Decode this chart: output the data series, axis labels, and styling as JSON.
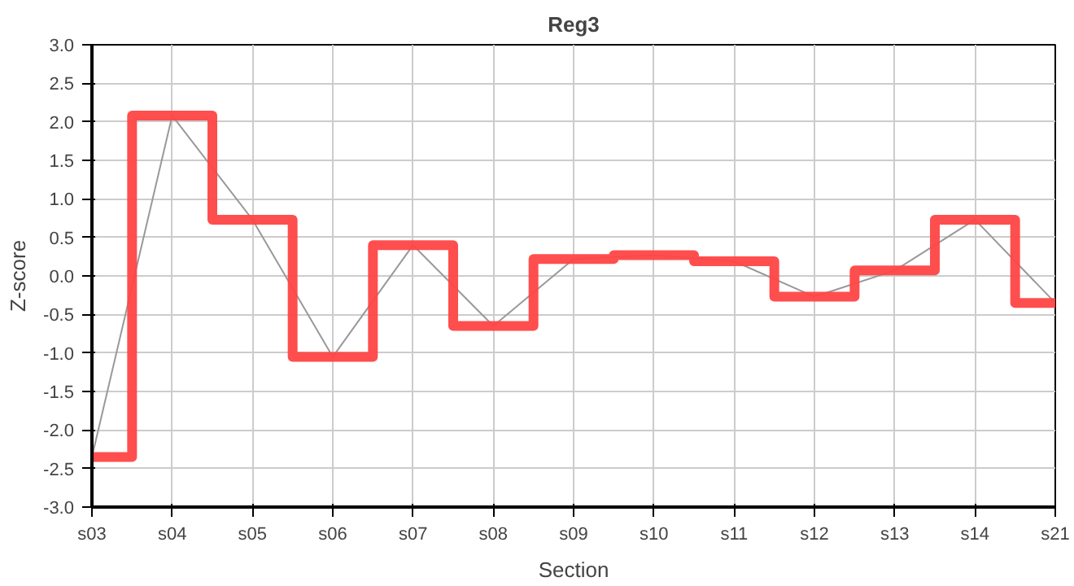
{
  "chart_data": {
    "type": "step",
    "title": "Reg3",
    "xlabel": "Section",
    "ylabel": "Z-score",
    "categories": [
      "s03",
      "s04",
      "s05",
      "s06",
      "s07",
      "s08",
      "s09",
      "s10",
      "s11",
      "s12",
      "s13",
      "s14",
      "s21"
    ],
    "series": [
      {
        "color": "#ff4444",
        "values": [
          -2.35,
          2.08,
          0.73,
          -1.05,
          0.4,
          -0.65,
          0.22,
          0.27,
          0.19,
          -0.27,
          0.07,
          0.73,
          -0.35
        ]
      },
      {
        "type": "line",
        "color": "#999999",
        "values": [
          -2.35,
          2.08,
          0.73,
          -1.05,
          0.4,
          -0.65,
          0.22,
          0.27,
          0.19,
          -0.27,
          0.07,
          0.73,
          -0.35
        ]
      }
    ],
    "ylim": [
      -3.0,
      3.0
    ],
    "yticks": [
      {
        "value": -3,
        "label": "-3.0"
      },
      {
        "value": -2.5,
        "label": "-2.5"
      },
      {
        "value": -2,
        "label": "-2.0"
      },
      {
        "value": -1.5,
        "label": "-1.5"
      },
      {
        "value": -1,
        "label": "-1.0"
      },
      {
        "value": -0.5,
        "label": "-0.5"
      },
      {
        "value": 0,
        "label": "0.0"
      },
      {
        "value": 0.5,
        "label": "0.5"
      },
      {
        "value": 1,
        "label": "1.0"
      },
      {
        "value": 1.5,
        "label": "1.5"
      },
      {
        "value": 2,
        "label": "2.0"
      },
      {
        "value": 2.5,
        "label": "2.5"
      },
      {
        "value": 3,
        "label": "3.0"
      }
    ],
    "grid": true
  }
}
